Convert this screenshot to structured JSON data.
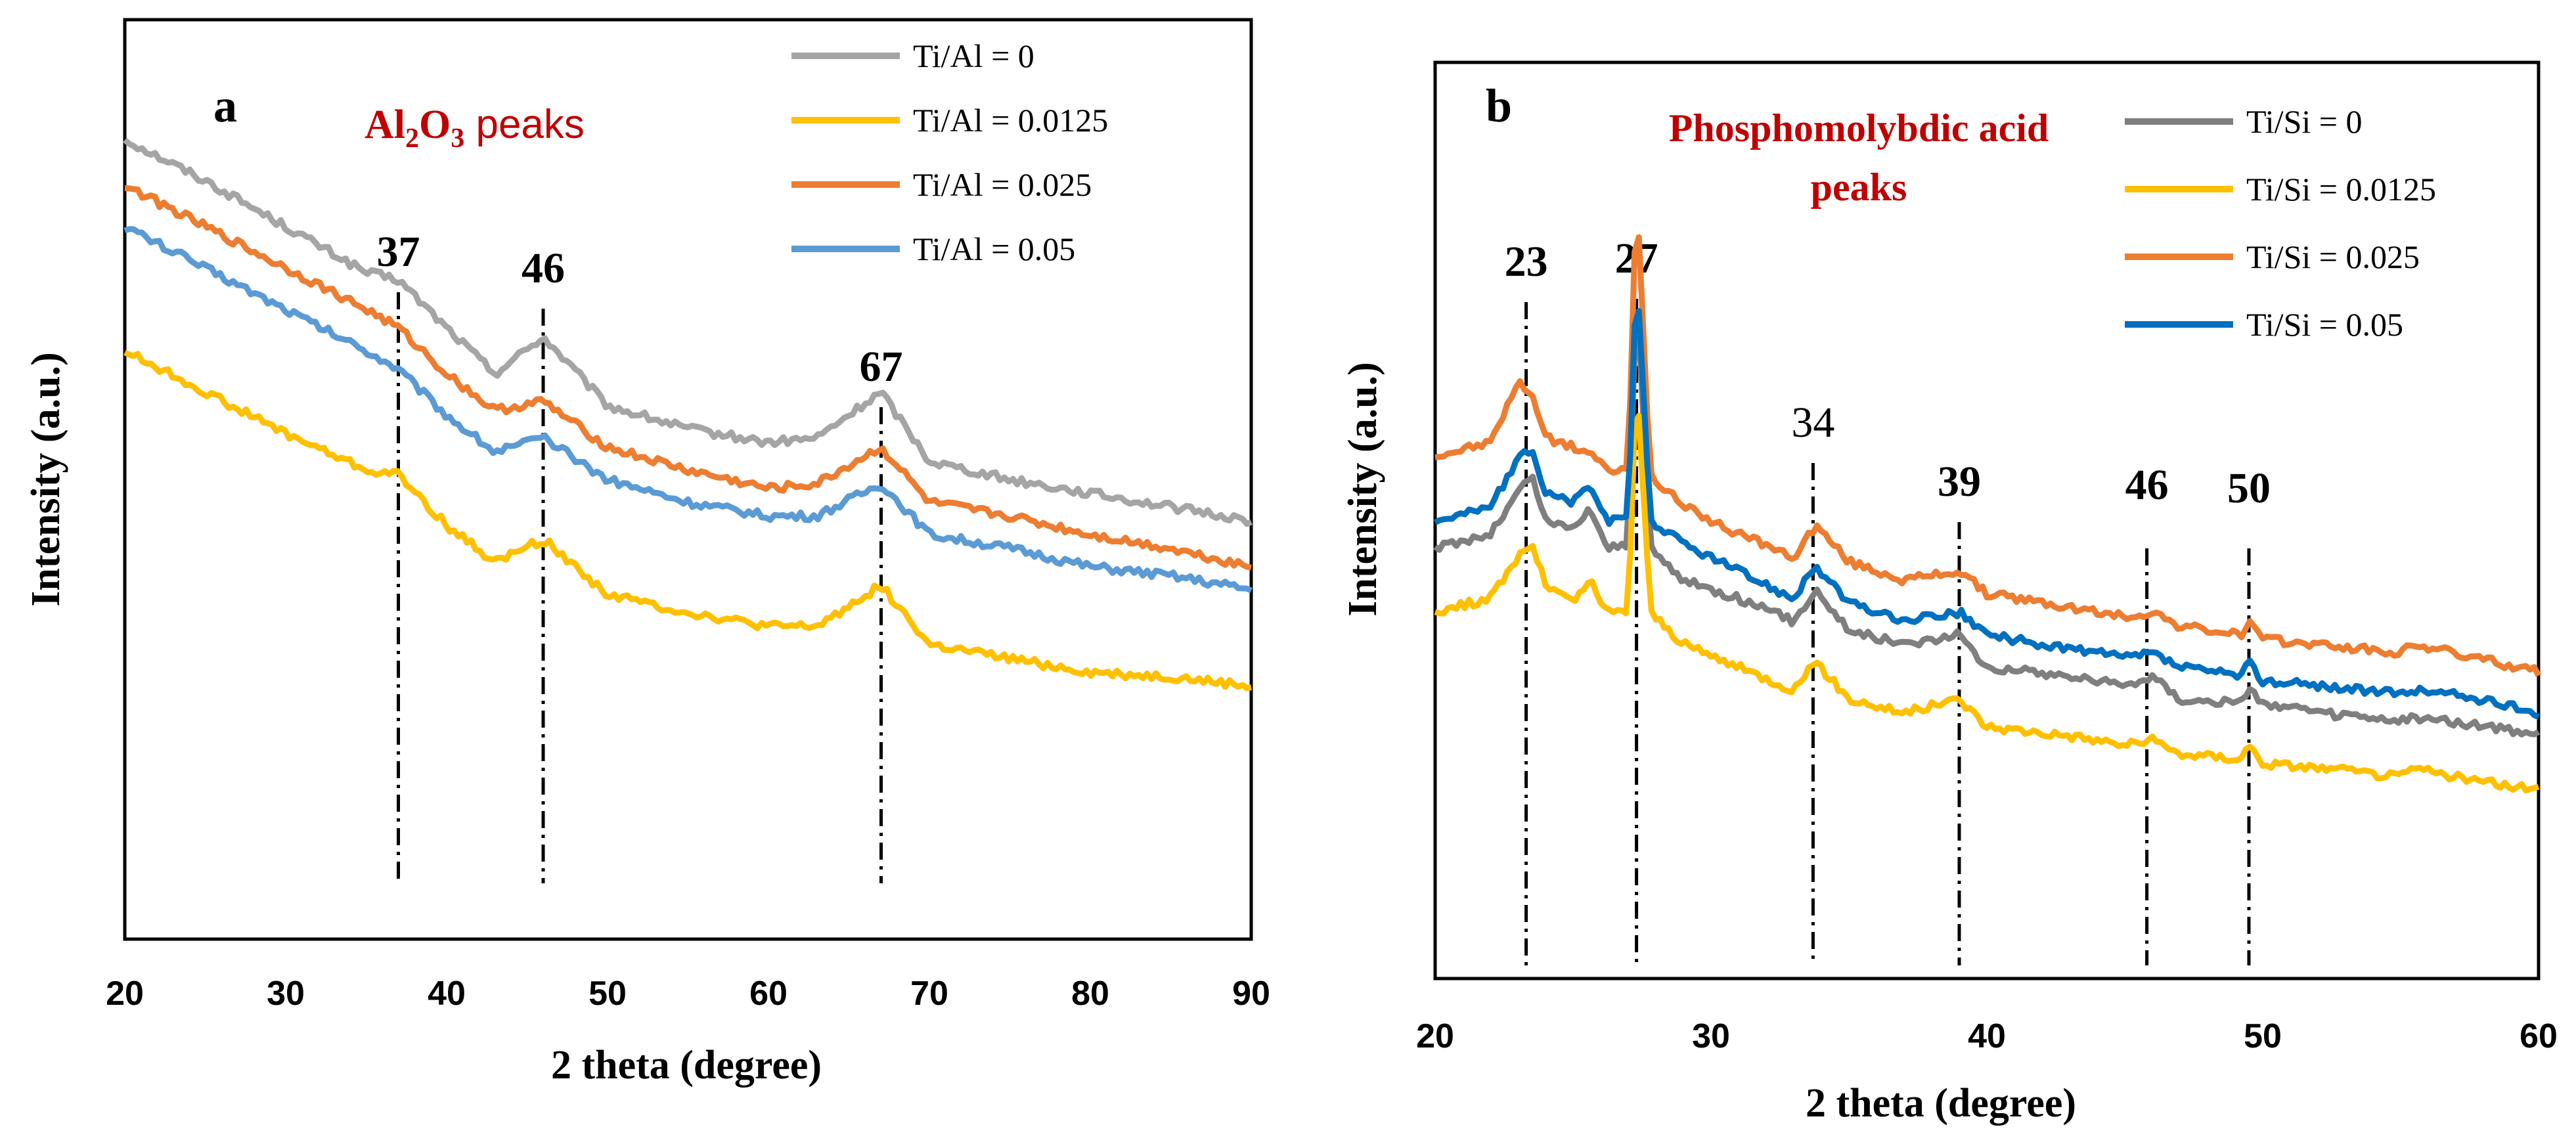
{
  "chart_data": [
    {
      "type": "line",
      "panel_label": "a",
      "title": "Al2O3 peaks",
      "title_parts": {
        "main": "Al",
        "sub1": "2",
        "mid": "O",
        "sub2": "3",
        "end": " peaks"
      },
      "title_color": "#C00000",
      "xlabel": "2 theta (degree)",
      "ylabel": "Intensity  (a.u.)",
      "xlim": [
        20,
        90
      ],
      "ylim": [
        0,
        100
      ],
      "xticks": [
        20,
        30,
        40,
        50,
        60,
        70,
        80,
        90
      ],
      "x": [
        20,
        25,
        30,
        35,
        37,
        40,
        43,
        46,
        50,
        55,
        60,
        63,
        67,
        70,
        75,
        80,
        85,
        90
      ],
      "series": [
        {
          "name": "Ti/Al = 0",
          "color": "#A5A5A5",
          "values": [
            87,
            82.5,
            77.5,
            72.5,
            71.7,
            66.5,
            61.5,
            65.5,
            58,
            55.5,
            54,
            54.5,
            59.5,
            52,
            50,
            48.5,
            47,
            45.5
          ]
        },
        {
          "name": "Ti/Al = 0.0125",
          "color": "#FFC000",
          "values": [
            64,
            59.5,
            55,
            51,
            50.5,
            45,
            41,
            43.5,
            37.5,
            35.5,
            34,
            34,
            38.5,
            32,
            30.5,
            29,
            28.5,
            27.5
          ]
        },
        {
          "name": "Ti/Al = 0.025",
          "color": "#ED7D31",
          "values": [
            82,
            77.5,
            73,
            68.5,
            66.5,
            61.5,
            57.5,
            58.5,
            53.5,
            51,
            49,
            49.5,
            53.5,
            47.5,
            46,
            44,
            42.5,
            40.5
          ]
        },
        {
          "name": "Ti/Al = 0.05",
          "color": "#5B9BD5",
          "values": [
            77.5,
            73,
            68.5,
            64,
            62,
            57,
            53,
            54.5,
            50,
            47.5,
            46,
            46,
            49.5,
            44,
            42.5,
            40.5,
            39.5,
            38
          ]
        }
      ],
      "peaks": [
        {
          "label": "37",
          "x": 37
        },
        {
          "label": "46",
          "x": 46
        },
        {
          "label": "67",
          "x": 67
        }
      ]
    },
    {
      "type": "line",
      "panel_label": "b",
      "title": "Phosphomolybdic acid peaks",
      "title_lines": [
        "Phosphomolybdic acid",
        "peaks"
      ],
      "title_color": "#C00000",
      "xlabel": "2 theta (degree)",
      "ylabel": "Intensity  (a.u.)",
      "xlim": [
        20,
        60
      ],
      "ylim": [
        0,
        100
      ],
      "xticks": [
        20,
        30,
        40,
        50,
        60
      ],
      "x": [
        20,
        22,
        23,
        23.5,
        24,
        25,
        25.6,
        26.2,
        27,
        27.3,
        27.8,
        29,
        31,
        33,
        33.8,
        35,
        37,
        39,
        40,
        43,
        45,
        46,
        47,
        49.2,
        49.5,
        50,
        52,
        55,
        55.5,
        57,
        60
      ],
      "series": [
        {
          "name": "Ti/Si = 0",
          "color": "#7F7F7F",
          "values": [
            47,
            48.5,
            53,
            55,
            50,
            49,
            51.5,
            47,
            47.5,
            75,
            47,
            43.5,
            41.5,
            39,
            42.5,
            38,
            36.5,
            37.5,
            34,
            33,
            32,
            33,
            30.5,
            30,
            32,
            30,
            29,
            28,
            28.5,
            28,
            26.5
          ]
        },
        {
          "name": "Ti/Si = 0.0125",
          "color": "#FFC000",
          "values": [
            40,
            41.5,
            46,
            47.5,
            43,
            41,
            43.5,
            40,
            40,
            66,
            40,
            36.5,
            34,
            31.5,
            34.5,
            30.5,
            29,
            30.5,
            27.5,
            26.5,
            25.5,
            26,
            24.5,
            24,
            25.5,
            23.5,
            23,
            22,
            23,
            22,
            20.5
          ]
        },
        {
          "name": "Ti/Si = 0.025",
          "color": "#ED7D31",
          "values": [
            57,
            58.5,
            65,
            64,
            59,
            58,
            57.5,
            55.5,
            55.5,
            86,
            55,
            51.5,
            48.5,
            46,
            49.5,
            45.5,
            43.5,
            44.5,
            42,
            40.5,
            39.5,
            40,
            38.5,
            37.5,
            39,
            37,
            36.5,
            35.5,
            36.5,
            35.5,
            33.5
          ]
        },
        {
          "name": "Ti/Si = 0.05",
          "color": "#0070C0",
          "values": [
            50,
            51.5,
            56.5,
            58,
            53,
            52,
            54,
            50,
            50,
            78,
            50,
            47.5,
            44.5,
            41.5,
            45,
            41,
            39,
            40,
            37.5,
            36,
            35,
            35.5,
            34,
            33,
            34.5,
            32.5,
            32,
            31,
            31.5,
            31,
            29
          ]
        }
      ],
      "peaks": [
        {
          "label": "23",
          "x": 23.3
        },
        {
          "label": "27",
          "x": 27.3
        },
        {
          "label": "34",
          "x": 33.7
        },
        {
          "label": "39",
          "x": 39.0
        },
        {
          "label": "46",
          "x": 45.8
        },
        {
          "label": "50",
          "x": 49.5
        }
      ]
    }
  ]
}
